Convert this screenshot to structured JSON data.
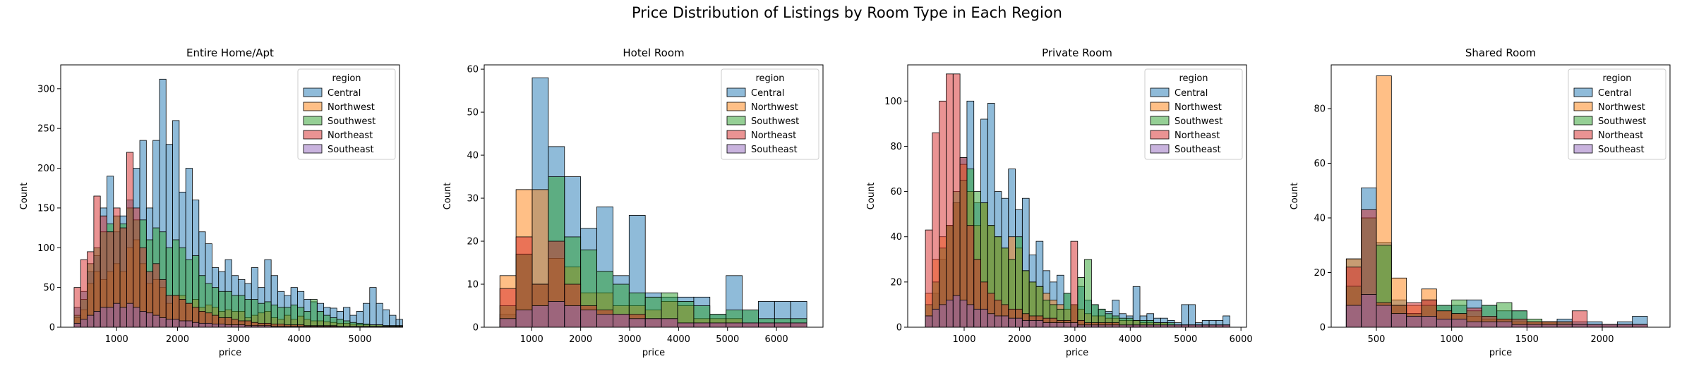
{
  "figure": {
    "suptitle": "Price Distribution of Listings by Room Type in Each Region"
  },
  "legend_title": "region",
  "series_colors": {
    "Central": "#1f77b4",
    "Northwest": "#ff7f0e",
    "Southwest": "#2ca02c",
    "Northeast": "#d62728",
    "Southeast": "#9467bd"
  },
  "chart_data": [
    {
      "type": "bar",
      "title": "Entire Home/Apt",
      "xlabel": "price",
      "ylabel": "Count",
      "xlim": [
        80,
        5650
      ],
      "ylim": [
        0,
        330
      ],
      "xticks": [
        1000,
        2000,
        3000,
        4000,
        5000
      ],
      "yticks": [
        0,
        50,
        100,
        150,
        200,
        250,
        300
      ],
      "legend_position": "upper right",
      "series": [
        {
          "name": "Central",
          "bin_start": 300,
          "bin_width": 108,
          "counts": [
            25,
            45,
            70,
            90,
            150,
            190,
            120,
            140,
            160,
            200,
            235,
            150,
            235,
            312,
            230,
            260,
            170,
            200,
            160,
            120,
            105,
            75,
            70,
            85,
            65,
            60,
            55,
            75,
            50,
            85,
            65,
            45,
            40,
            50,
            45,
            35,
            32,
            30,
            25,
            24,
            20,
            25,
            15,
            20,
            30,
            50,
            30,
            22,
            15,
            10
          ]
        },
        {
          "name": "Northwest",
          "bin_start": 300,
          "bin_width": 108,
          "counts": [
            12,
            22,
            55,
            70,
            60,
            70,
            80,
            70,
            100,
            110,
            80,
            55,
            60,
            50,
            30,
            40,
            40,
            30,
            35,
            25,
            28,
            25,
            20,
            22,
            20,
            20,
            12,
            15,
            18,
            20,
            12,
            10,
            15,
            10,
            14,
            10,
            8,
            8,
            7,
            6,
            5,
            5,
            4,
            3,
            3,
            3,
            3,
            2,
            2,
            2
          ]
        },
        {
          "name": "Southwest",
          "bin_start": 300,
          "bin_width": 108,
          "counts": [
            15,
            35,
            80,
            100,
            120,
            130,
            140,
            130,
            150,
            135,
            135,
            110,
            125,
            120,
            100,
            110,
            100,
            85,
            90,
            65,
            55,
            50,
            45,
            45,
            40,
            40,
            35,
            35,
            30,
            32,
            28,
            25,
            25,
            28,
            25,
            20,
            35,
            20,
            15,
            12,
            10,
            8,
            6,
            5,
            4,
            3,
            3,
            2,
            2,
            2
          ]
        },
        {
          "name": "Northeast",
          "bin_start": 300,
          "bin_width": 108,
          "counts": [
            50,
            85,
            95,
            165,
            140,
            120,
            150,
            125,
            220,
            150,
            100,
            70,
            80,
            60,
            40,
            40,
            35,
            30,
            25,
            20,
            18,
            15,
            12,
            12,
            10,
            8,
            8,
            6,
            5,
            5,
            4,
            4,
            3,
            3,
            3,
            2,
            2,
            2,
            2,
            2,
            1,
            1,
            1,
            1,
            1,
            1,
            1,
            1,
            1,
            1
          ]
        },
        {
          "name": "Southeast",
          "bin_start": 300,
          "bin_width": 108,
          "counts": [
            5,
            10,
            15,
            20,
            25,
            25,
            30,
            25,
            30,
            25,
            20,
            18,
            15,
            12,
            10,
            10,
            8,
            8,
            6,
            5,
            5,
            4,
            4,
            3,
            3,
            3,
            2,
            2,
            2,
            2,
            1,
            1,
            1,
            1,
            1,
            1,
            1,
            1,
            1,
            1,
            1,
            1,
            1,
            1,
            1,
            1,
            1,
            1,
            1,
            1
          ]
        }
      ]
    },
    {
      "type": "bar",
      "title": "Hotel Room",
      "xlabel": "price",
      "ylabel": "Count",
      "xlim": [
        30,
        6950
      ],
      "ylim": [
        0,
        61
      ],
      "xticks": [
        1000,
        2000,
        3000,
        4000,
        5000,
        6000
      ],
      "yticks": [
        0,
        10,
        20,
        30,
        40,
        50,
        60
      ],
      "legend_position": "upper right",
      "series": [
        {
          "name": "Central",
          "bin_start": 350,
          "bin_width": 330,
          "counts": [
            3,
            17,
            58,
            42,
            35,
            23,
            28,
            12,
            26,
            8,
            7,
            7,
            7,
            3,
            12,
            4,
            6,
            6,
            6
          ]
        },
        {
          "name": "Northwest",
          "bin_start": 350,
          "bin_width": 330,
          "counts": [
            12,
            32,
            32,
            16,
            14,
            8,
            8,
            5,
            5,
            4,
            6,
            5,
            2,
            2,
            2,
            1,
            1,
            1,
            1
          ]
        },
        {
          "name": "Southwest",
          "bin_start": 350,
          "bin_width": 330,
          "counts": [
            5,
            17,
            10,
            35,
            21,
            18,
            13,
            10,
            8,
            7,
            8,
            6,
            5,
            3,
            4,
            4,
            2,
            2,
            2
          ]
        },
        {
          "name": "Northeast",
          "bin_start": 350,
          "bin_width": 330,
          "counts": [
            9,
            21,
            10,
            20,
            10,
            5,
            4,
            3,
            3,
            2,
            2,
            1,
            1,
            1,
            1,
            1,
            1,
            1,
            1
          ]
        },
        {
          "name": "Southeast",
          "bin_start": 350,
          "bin_width": 330,
          "counts": [
            2,
            4,
            5,
            6,
            5,
            4,
            3,
            3,
            2,
            2,
            2,
            1,
            1,
            1,
            1,
            1,
            1,
            1,
            1
          ]
        }
      ]
    },
    {
      "type": "bar",
      "title": "Private Room",
      "xlabel": "price",
      "ylabel": "Count",
      "xlim": [
        -20,
        6100
      ],
      "ylim": [
        0,
        116
      ],
      "xticks": [
        1000,
        2000,
        3000,
        4000,
        5000,
        6000
      ],
      "yticks": [
        0,
        20,
        40,
        60,
        80,
        100
      ],
      "legend_position": "upper right",
      "series": [
        {
          "name": "Central",
          "bin_start": 300,
          "bin_width": 125,
          "counts": [
            5,
            15,
            30,
            45,
            55,
            75,
            100,
            55,
            92,
            99,
            60,
            57,
            70,
            52,
            57,
            32,
            38,
            25,
            20,
            23,
            15,
            10,
            18,
            12,
            10,
            8,
            7,
            12,
            6,
            5,
            18,
            5,
            6,
            4,
            4,
            3,
            2,
            10,
            10,
            2,
            3,
            3,
            3,
            5
          ]
        },
        {
          "name": "Northwest",
          "bin_start": 300,
          "bin_width": 125,
          "counts": [
            15,
            30,
            40,
            45,
            55,
            72,
            60,
            45,
            55,
            45,
            40,
            35,
            40,
            35,
            25,
            20,
            18,
            15,
            12,
            10,
            8,
            10,
            8,
            6,
            5,
            5,
            4,
            4,
            3,
            3,
            3,
            2,
            2,
            2,
            2,
            1,
            1,
            1,
            1,
            1,
            1,
            1,
            1,
            1
          ]
        },
        {
          "name": "Southwest",
          "bin_start": 300,
          "bin_width": 125,
          "counts": [
            10,
            20,
            35,
            45,
            60,
            65,
            70,
            60,
            55,
            45,
            40,
            35,
            30,
            40,
            25,
            20,
            18,
            12,
            10,
            8,
            15,
            10,
            22,
            30,
            10,
            8,
            6,
            5,
            4,
            4,
            3,
            3,
            3,
            2,
            2,
            2,
            1,
            1,
            1,
            1,
            1,
            1,
            1,
            1
          ]
        },
        {
          "name": "Northeast",
          "bin_start": 300,
          "bin_width": 125,
          "counts": [
            43,
            86,
            100,
            112,
            112,
            75,
            45,
            30,
            20,
            15,
            12,
            10,
            8,
            8,
            6,
            5,
            5,
            4,
            4,
            3,
            3,
            38,
            3,
            2,
            2,
            2,
            2,
            2,
            1,
            1,
            1,
            1,
            1,
            1,
            1,
            1,
            1,
            1,
            1,
            1,
            1,
            1,
            1,
            1
          ]
        },
        {
          "name": "Southeast",
          "bin_start": 300,
          "bin_width": 125,
          "counts": [
            5,
            8,
            10,
            12,
            14,
            12,
            10,
            8,
            8,
            6,
            5,
            5,
            4,
            4,
            3,
            3,
            3,
            2,
            2,
            2,
            2,
            2,
            1,
            1,
            1,
            1,
            1,
            1,
            1,
            1,
            1,
            1,
            1,
            1,
            1,
            1,
            1,
            1,
            1,
            1,
            1,
            1,
            1,
            1
          ]
        }
      ]
    },
    {
      "type": "bar",
      "title": "Shared Room",
      "xlabel": "price",
      "ylabel": "Count",
      "xlim": [
        200,
        2450
      ],
      "ylim": [
        0,
        96
      ],
      "xticks": [
        500,
        1000,
        1500,
        2000
      ],
      "yticks": [
        0,
        20,
        40,
        60,
        80
      ],
      "legend_position": "upper right",
      "series": [
        {
          "name": "Central",
          "bin_start": 300,
          "bin_width": 100,
          "counts": [
            25,
            51,
            31,
            10,
            5,
            10,
            8,
            8,
            10,
            8,
            6,
            6,
            2,
            2,
            3,
            2,
            2,
            1,
            2,
            4
          ]
        },
        {
          "name": "Northwest",
          "bin_start": 300,
          "bin_width": 100,
          "counts": [
            25,
            12,
            92,
            18,
            8,
            14,
            6,
            5,
            4,
            3,
            3,
            2,
            2,
            2,
            1,
            1,
            1,
            1,
            1,
            1
          ]
        },
        {
          "name": "Southwest",
          "bin_start": 300,
          "bin_width": 100,
          "counts": [
            15,
            40,
            30,
            8,
            5,
            8,
            8,
            10,
            6,
            8,
            9,
            6,
            3,
            2,
            2,
            1,
            1,
            1,
            1,
            1
          ]
        },
        {
          "name": "Northeast",
          "bin_start": 300,
          "bin_width": 100,
          "counts": [
            22,
            43,
            9,
            8,
            9,
            10,
            6,
            5,
            7,
            4,
            3,
            3,
            2,
            2,
            2,
            6,
            1,
            1,
            1,
            1
          ]
        },
        {
          "name": "Southeast",
          "bin_start": 300,
          "bin_width": 100,
          "counts": [
            8,
            12,
            8,
            5,
            4,
            4,
            3,
            3,
            2,
            2,
            2,
            1,
            1,
            1,
            1,
            1,
            1,
            1,
            1,
            1
          ]
        }
      ]
    }
  ]
}
